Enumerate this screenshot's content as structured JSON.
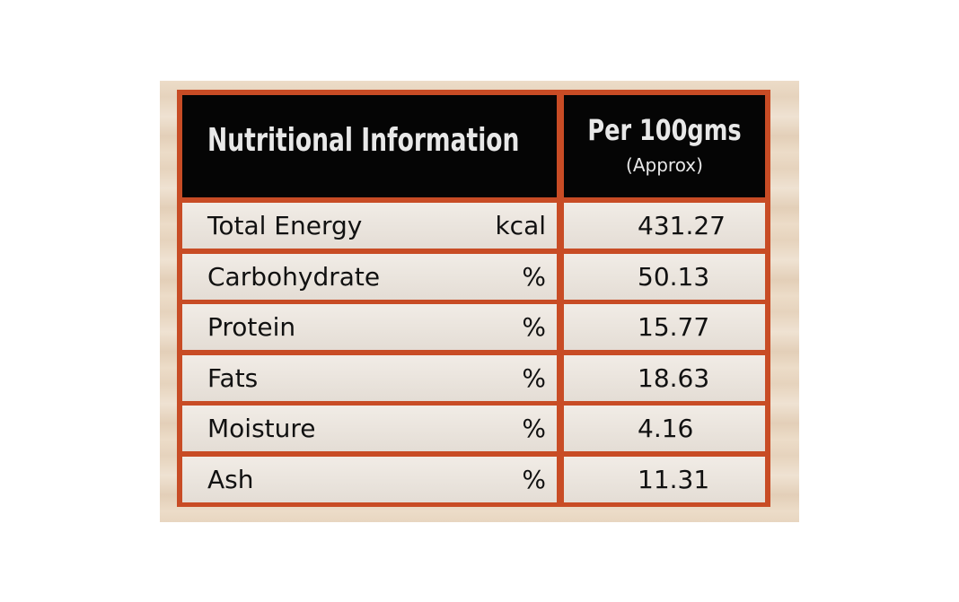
{
  "header": {
    "title": "Nutritional Information",
    "per": "Per 100gms",
    "note": "(Approx)"
  },
  "table": {
    "rows": [
      [
        "Total Energy",
        "kcal",
        "431.27"
      ],
      [
        "Carbohydrate",
        "%",
        "50.13"
      ],
      [
        "Protein",
        "%",
        "15.77"
      ],
      [
        "Fats",
        "%",
        "18.63"
      ],
      [
        "Moisture",
        "%",
        "4.16"
      ],
      [
        "Ash",
        "%",
        "11.31"
      ]
    ]
  }
}
